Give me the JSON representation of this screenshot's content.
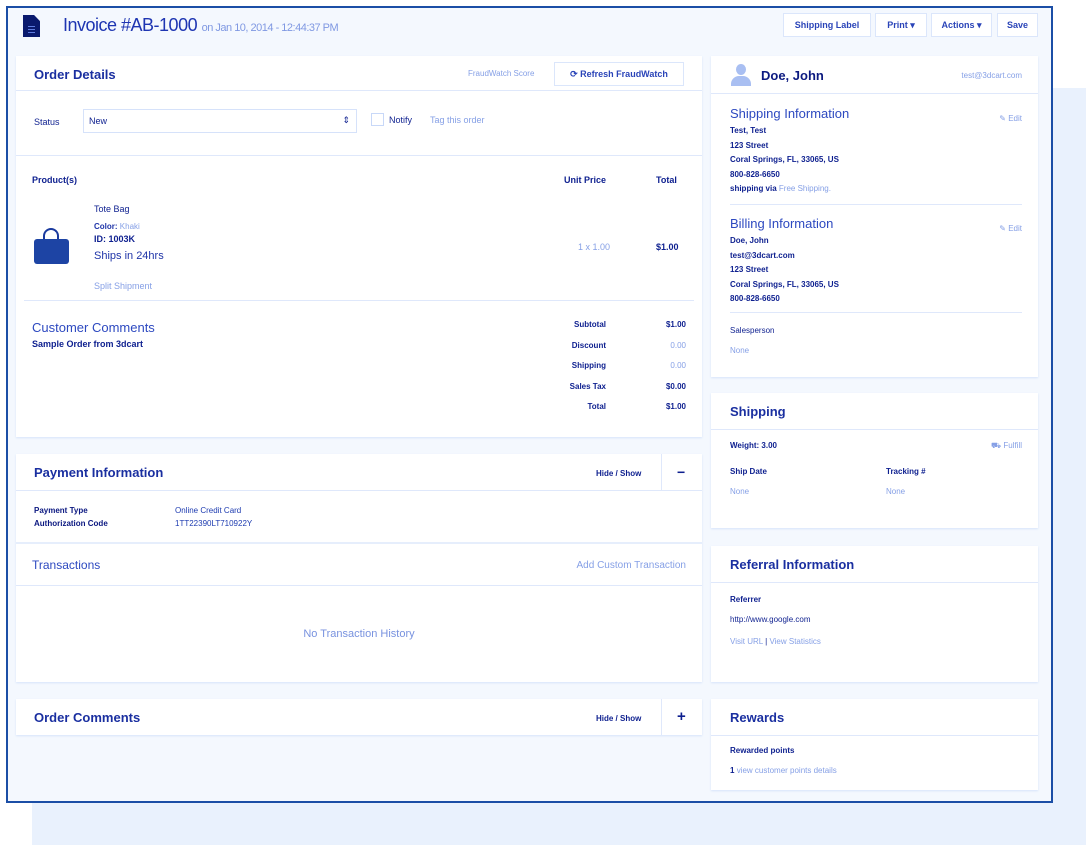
{
  "header": {
    "title": "Invoice #AB-1000",
    "date": "on Jan 10, 2014 - 12:44:37 PM",
    "buttons": [
      "Shipping Label",
      "Print ▾",
      "Actions ▾",
      "Save"
    ]
  },
  "order_details": {
    "title": "Order Details",
    "fraud_score": "FraudWatch Score",
    "refresh": "Refresh FraudWatch",
    "status_label": "Status",
    "status_value": "New",
    "notify": "Notify",
    "tag": "Tag this order",
    "columns": [
      "Product(s)",
      "Unit Price",
      "Total"
    ],
    "product": {
      "name": "Tote Bag",
      "color_label": "Color:",
      "color": "Khaki",
      "id": "ID: 1003K",
      "ships": "Ships in 24hrs",
      "split": "Split Shipment",
      "unit": "1 x 1.00",
      "total": "$1.00"
    },
    "comments_title": "Customer Comments",
    "comments": "Sample Order from 3dcart",
    "totals": [
      {
        "label": "Subtotal",
        "value": "$1.00"
      },
      {
        "label": "Discount",
        "value": "0.00"
      },
      {
        "label": "Shipping",
        "value": "0.00"
      },
      {
        "label": "Sales Tax",
        "value": "$0.00"
      },
      {
        "label": "Total",
        "value": "$1.00"
      }
    ]
  },
  "payment": {
    "title": "Payment Information",
    "toggle": "Hide / Show",
    "toggle_icon": "−",
    "rows": [
      {
        "label": "Payment Type",
        "value": "Online Credit Card"
      },
      {
        "label": "Authorization Code",
        "value": "1TT22390LT710922Y"
      }
    ]
  },
  "transactions": {
    "title": "Transactions",
    "add": "Add Custom Transaction",
    "empty": "No Transaction History"
  },
  "order_comments": {
    "title": "Order Comments",
    "toggle": "Hide / Show",
    "toggle_icon": "+"
  },
  "customer": {
    "name": "Doe, John",
    "email": "test@3dcart.com",
    "shipping_title": "Shipping Information",
    "edit": "Edit",
    "shipping_lines": [
      "Test, Test",
      "123 Street",
      "Coral Springs, FL, 33065, US",
      "800-828-6650"
    ],
    "ship_via": "shipping via",
    "ship_method": "Free Shipping.",
    "billing_title": "Billing Information",
    "billing_lines": [
      "Doe, John",
      "test@3dcart.com",
      "123 Street",
      "Coral Springs, FL, 33065, US",
      "800-828-6650"
    ],
    "salesperson_label": "Salesperson",
    "salesperson": "None"
  },
  "shipping": {
    "title": "Shipping",
    "weight": "Weight: 3.00",
    "fulfill": "Fulfill",
    "ship_date_label": "Ship Date",
    "ship_date": "None",
    "tracking_label": "Tracking #",
    "tracking": "None"
  },
  "referral": {
    "title": "Referral Information",
    "referrer_label": "Referrer",
    "referrer": "http://www.google.com",
    "visit": "Visit URL",
    "sep": "|",
    "stats": "View Statistics"
  },
  "rewards": {
    "title": "Rewards",
    "label": "Rewarded points",
    "points": "1",
    "details": "view customer points details"
  },
  "colors": {
    "frame": "#1b4ea6",
    "text": "#1f34a8",
    "link": "#86a0e6"
  }
}
